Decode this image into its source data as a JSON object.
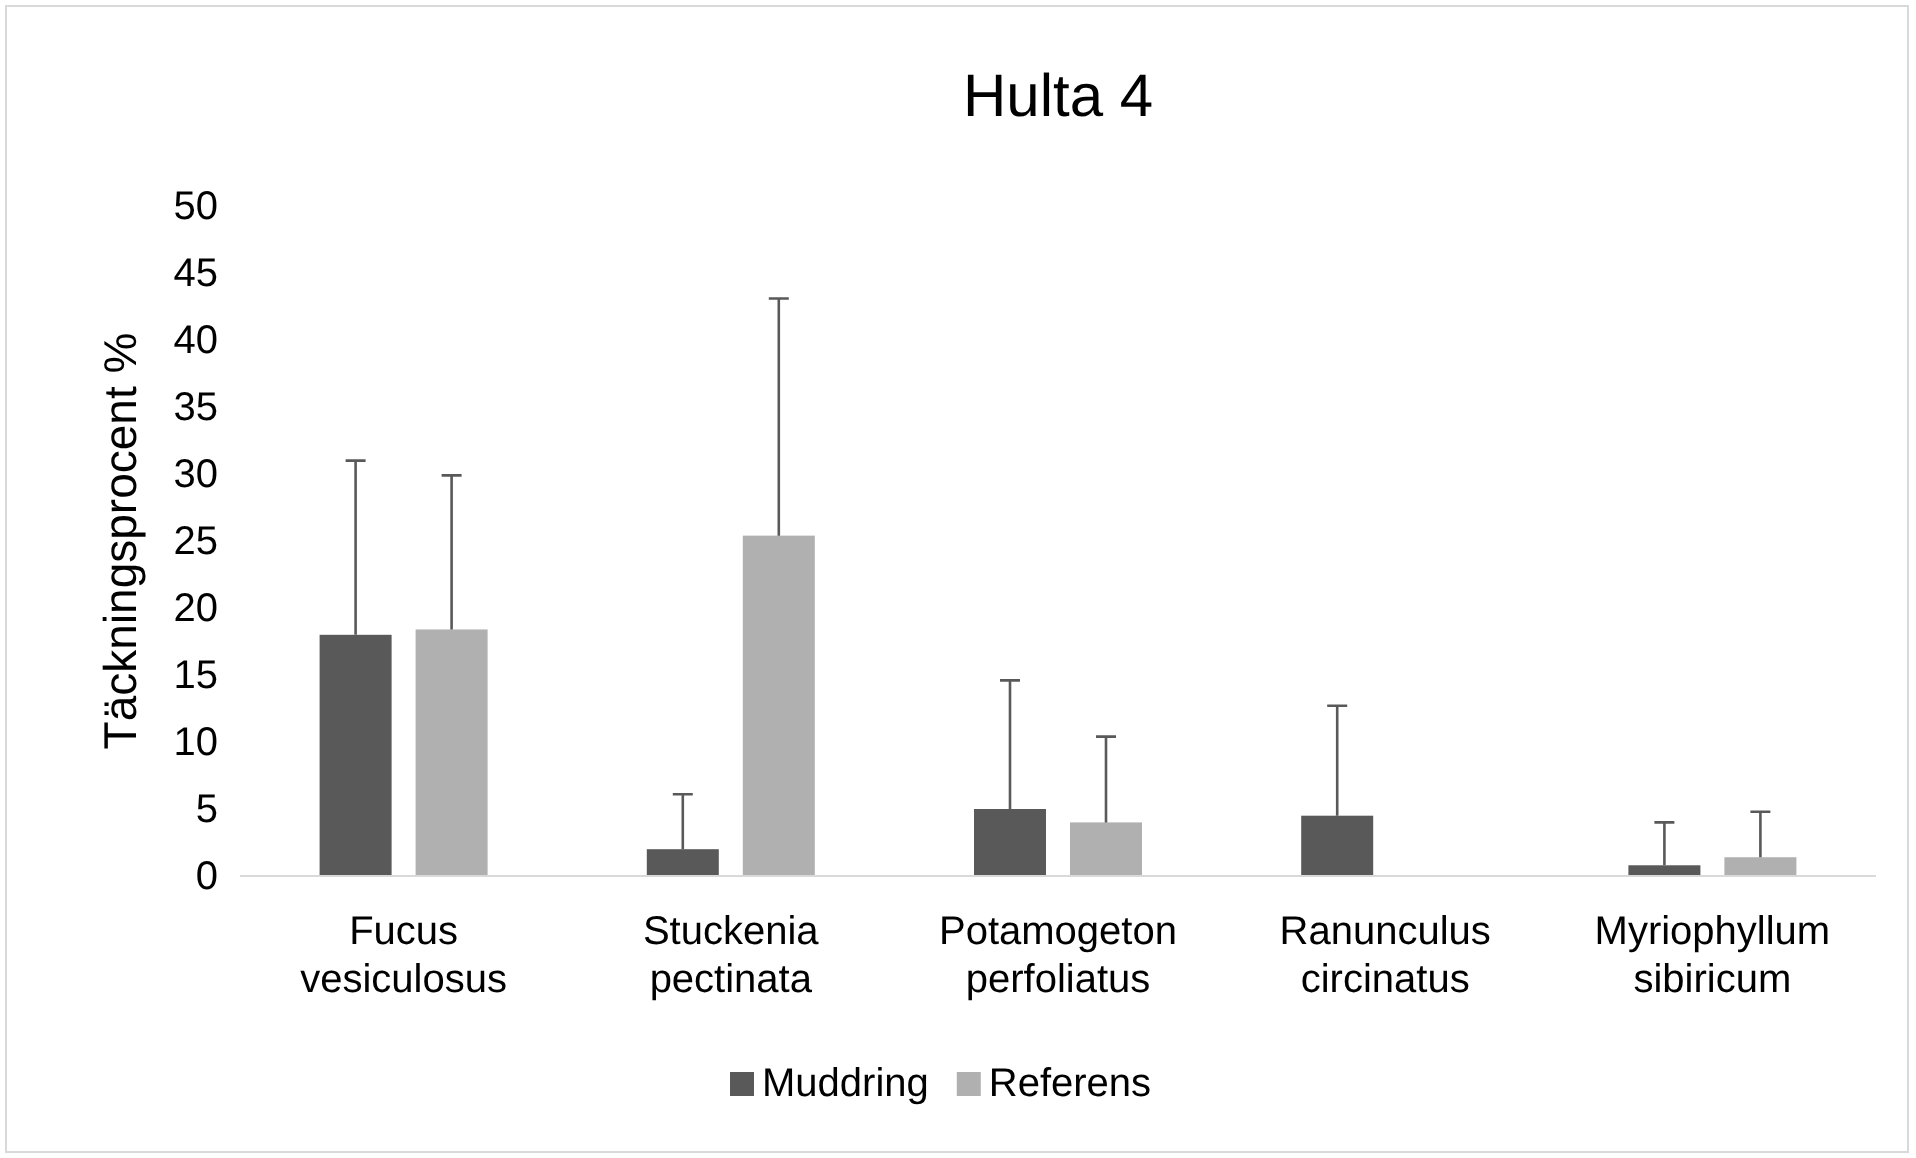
{
  "chart_data": {
    "type": "bar",
    "title": "Hulta 4",
    "ylabel": "Täckningsprocent %",
    "categories": [
      "Fucus vesiculosus",
      "Stuckenia pectinata",
      "Potamogeton perfoliatus",
      "Ranunculus circinatus",
      "Myriophyllum sibiricum"
    ],
    "series": [
      {
        "name": "Muddring",
        "color": "#595959",
        "values": [
          18,
          2,
          5,
          4.5,
          0.8
        ],
        "errors": [
          [
            18,
            31
          ],
          [
            2,
            6.1
          ],
          [
            5,
            14.6
          ],
          [
            4.5,
            12.7
          ],
          [
            0.8,
            4
          ]
        ]
      },
      {
        "name": "Referens",
        "color": "#b0b0b0",
        "values": [
          18.4,
          25.4,
          4,
          0,
          1.4
        ],
        "errors": [
          [
            18.4,
            29.9
          ],
          [
            25.4,
            43.1
          ],
          [
            4,
            10.4
          ],
          null,
          [
            1.4,
            4.8
          ]
        ]
      }
    ],
    "ylim": [
      0,
      50
    ],
    "yticks": [
      0,
      5,
      10,
      15,
      20,
      25,
      30,
      35,
      40,
      45,
      50
    ],
    "grid": false,
    "legend": "bottom"
  }
}
